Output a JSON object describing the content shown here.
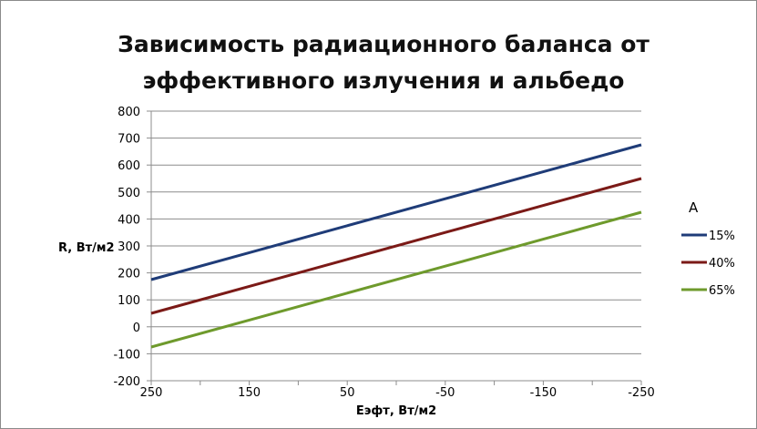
{
  "chart_data": {
    "type": "line",
    "title_line1": "Зависимость радиационного баланса от",
    "title_line2": "эффективного излучения и альбедо",
    "xlabel": "Еэфт, Вт/м2",
    "ylabel": "R, Вт/м2",
    "x": [
      250,
      150,
      50,
      -50,
      -150,
      -250
    ],
    "x_ticks": [
      "250",
      "150",
      "50",
      "-50",
      "-150",
      "-250"
    ],
    "xlim": [
      250,
      -250
    ],
    "xaxis_reversed": true,
    "ylim": [
      -200,
      800
    ],
    "y_ticks": [
      "800",
      "700",
      "600",
      "500",
      "400",
      "300",
      "200",
      "100",
      "0",
      "-100",
      "-200"
    ],
    "grid": true,
    "legend_title": "А",
    "legend_position": "right",
    "series": [
      {
        "name": "15%",
        "color": "#1f3c78",
        "values": [
          175,
          275,
          375,
          475,
          575,
          675
        ]
      },
      {
        "name": "40%",
        "color": "#7b1a17",
        "values": [
          50,
          150,
          250,
          350,
          450,
          550
        ]
      },
      {
        "name": "65%",
        "color": "#6e9a2c",
        "values": [
          -75,
          25,
          125,
          225,
          325,
          425
        ]
      }
    ]
  }
}
